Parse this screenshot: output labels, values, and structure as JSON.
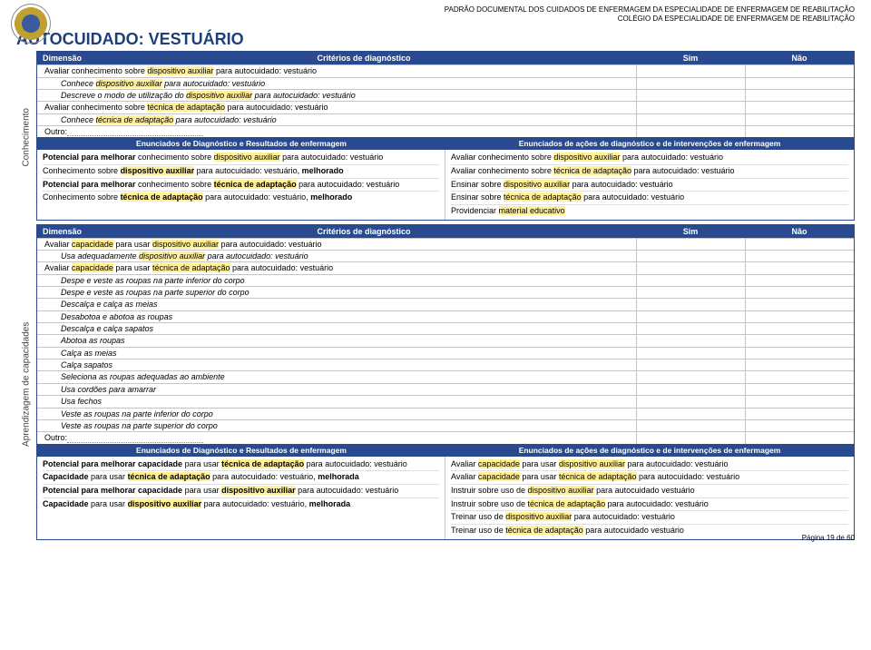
{
  "header": {
    "line1": "PADRÃO DOCUMENTAL DOS CUIDADOS DE ENFERMAGEM DA ESPECIALIDADE DE ENFERMAGEM DE REABILITAÇÃO",
    "line2": "COLÉGIO DA ESPECIALIDADE DE ENFERMAGEM DE REABILITAÇÃO"
  },
  "title": "AUTOCUIDADO: VESTUÁRIO",
  "labels": {
    "dimensao": "Dimensão",
    "criterios": "Critérios de diagnóstico",
    "sim": "Sim",
    "nao": "Não",
    "enun_diag": "Enunciados de Diagnóstico e Resultados de enfermagem",
    "enun_acoes": "Enunciados de ações de diagnóstico e de intervenções de enfermagem",
    "outro": "Outro:"
  },
  "dim1": {
    "label": "Conhecimento",
    "rows": {
      "r1": "Avaliar conhecimento sobre <span class='hl'>dispositivo auxiliar</span> para autocuidado: vestuário",
      "r2": "Conhece <span class='hl'>dispositivo auxiliar</span> para autocuidado: vestuário",
      "r3": "Descreve o modo de utilização do <span class='hl'>dispositivo auxiliar</span> para autocuidado: vestuário",
      "r4": "Avaliar conhecimento sobre <span class='hl'>técnica de adaptação</span> para autocuidado: vestuário",
      "r5": "Conhece <span class='hl'>técnica de adaptação</span> para autocuidado: vestuário"
    },
    "left": [
      "<b>Potencial para melhorar</b> conhecimento sobre <span class='hl'>dispositivo auxiliar</span> para autocuidado: vestuário",
      "Conhecimento sobre <b><span class='hl'>dispositivo auxiliar</span></b> para autocuidado: vestuário, <b>melhorado</b>",
      "<b>Potencial para melhorar</b> conhecimento sobre <b><span class='hl'>técnica de adaptação</span></b> para autocuidado: vestuário",
      "Conhecimento sobre <b><span class='hl'>técnica de adaptação</span></b> para autocuidado: vestuário, <b>melhorado</b>"
    ],
    "right": [
      "Avaliar conhecimento sobre <span class='hl'>dispositivo auxiliar</span> para autocuidado: vestuário",
      "Avaliar conhecimento sobre <span class='hl'>técnica de adaptação</span> para autocuidado: vestuário",
      "Ensinar sobre <span class='hl'>dispositivo auxiliar</span> para autocuidado: vestuário",
      "Ensinar sobre <span class='hl'>técnica de adaptação</span> para autocuidado: vestuário",
      "Providenciar <span class='hl'>material educativo</span>"
    ]
  },
  "dim2": {
    "label": "Aprendizagem de capacidades",
    "rows": {
      "r1": "Avaliar <span class='hl'>capacidade</span> para usar <span class='hl'>dispositivo auxiliar</span> para autocuidado: vestuário",
      "r2": "Usa adequadamente <span class='hl'>dispositivo auxiliar</span> para autocuidado: vestuário",
      "r3": "Avaliar <span class='hl'>capacidade</span> para usar <span class='hl'>técnica de adaptação</span> para autocuidado: vestuário",
      "s1": "Despe e veste as roupas na parte inferior do corpo",
      "s2": "Despe e veste as roupas na parte superior do corpo",
      "s3": "Descalça e calça as meias",
      "s4": "Desabotoa e abotoa as roupas",
      "s5": "Descalça e calça sapatos",
      "s6": "Abotoa as roupas",
      "s7": "Calça as meias",
      "s8": "Calça sapatos",
      "s9": "Seleciona as roupas adequadas ao ambiente",
      "s10": "Usa cordões para amarrar",
      "s11": "Usa fechos",
      "s12": "Veste as roupas na parte inferior do corpo",
      "s13": "Veste as roupas na parte superior do corpo"
    },
    "left": [
      "<b>Potencial para melhorar capacidade</b> para usar <b><span class='hl'>técnica de adaptação</span></b> para autocuidado: vestuário",
      "<b>Capacidade</b> para usar <b><span class='hl'>técnica de adaptação</span></b> para autocuidado: vestuário, <b>melhorada</b>",
      "<b>Potencial para melhorar capacidade</b> para usar <b><span class='hl'>dispositivo auxiliar</span></b> para autocuidado: vestuário",
      "<b>Capacidade</b> para usar <b><span class='hl'>dispositivo auxiliar</span></b> para autocuidado: vestuário, <b>melhorada</b>"
    ],
    "right": [
      "Avaliar <span class='hl'>capacidade</span> para usar <span class='hl'>dispositivo auxiliar</span> para autocuidado: vestuário",
      "Avaliar <span class='hl'>capacidade</span> para usar <span class='hl'>técnica de adaptação</span> para autocuidado: vestuário",
      "Instruir sobre uso de <span class='hl'>dispositivo auxiliar</span> para autocuidado vestuário",
      "Instruir sobre uso de <span class='hl'>técnica de adaptação</span> para autocuidado: vestuário",
      "Treinar uso de <span class='hl'>dispositivo auxiliar</span> para autocuidado: vestuário",
      "Treinar uso de <span class='hl'>técnica de adaptação</span> para autocuidado vestuário"
    ]
  },
  "footer": "Página 19 de 60"
}
